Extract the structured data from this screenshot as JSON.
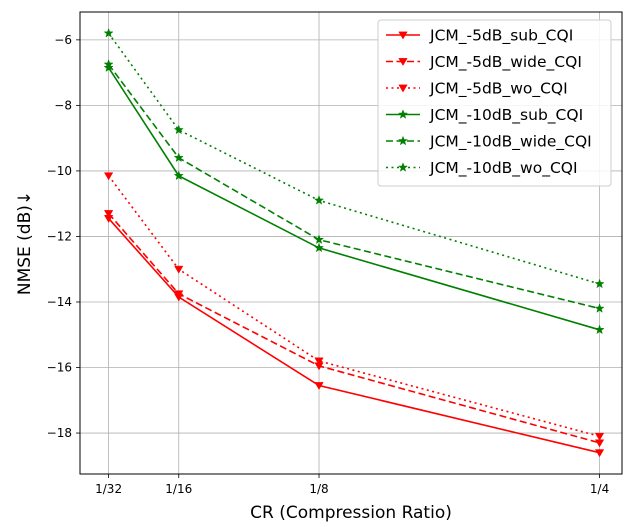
{
  "chart_data": {
    "type": "line",
    "title": "",
    "xlabel": "CR (Compression Ratio)",
    "ylabel": "NMSE (dB)↓",
    "x": [
      0.03125,
      0.0625,
      0.125,
      0.25
    ],
    "x_tick_labels": [
      "1/32",
      "1/16",
      "1/8",
      "1/4"
    ],
    "xlim": [
      0.0185,
      0.26
    ],
    "ylim": [
      -19.25,
      -5.15
    ],
    "y_ticks": [
      -18,
      -16,
      -14,
      -12,
      -10,
      -8,
      -6
    ],
    "grid": true,
    "legend_position": "upper-right",
    "series": [
      {
        "name": "JCM_-5dB_sub_CQI",
        "color": "#ff0000",
        "linestyle": "solid",
        "marker": "triangle-down",
        "values": [
          -11.45,
          -13.85,
          -16.55,
          -18.6
        ]
      },
      {
        "name": "JCM_-5dB_wide_CQI",
        "color": "#ff0000",
        "linestyle": "dashed",
        "marker": "triangle-down",
        "values": [
          -11.3,
          -13.75,
          -15.95,
          -18.3
        ]
      },
      {
        "name": "JCM_-5dB_wo_CQI",
        "color": "#ff0000",
        "linestyle": "dotted",
        "marker": "triangle-down",
        "values": [
          -10.15,
          -13.0,
          -15.8,
          -18.1
        ]
      },
      {
        "name": "JCM_-10dB_sub_CQI",
        "color": "#008000",
        "linestyle": "solid",
        "marker": "star",
        "values": [
          -6.85,
          -10.15,
          -12.35,
          -14.85
        ]
      },
      {
        "name": "JCM_-10dB_wide_CQI",
        "color": "#008000",
        "linestyle": "dashed",
        "marker": "star",
        "values": [
          -6.75,
          -9.6,
          -12.1,
          -14.2
        ]
      },
      {
        "name": "JCM_-10dB_wo_CQI",
        "color": "#008000",
        "linestyle": "dotted",
        "marker": "star",
        "values": [
          -5.8,
          -8.75,
          -10.9,
          -13.45
        ]
      }
    ]
  }
}
